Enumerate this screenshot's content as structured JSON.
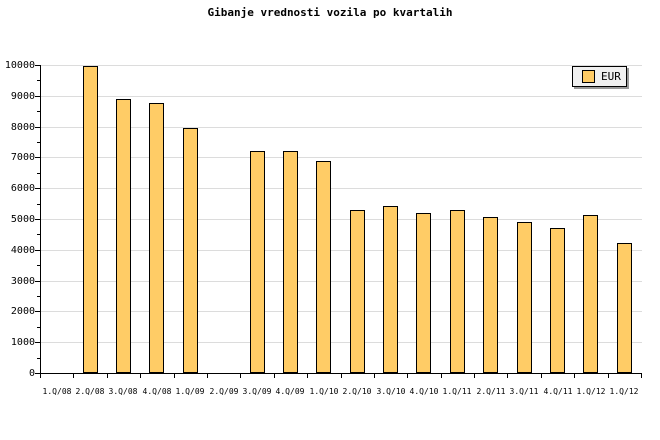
{
  "title": "Gibanje vrednosti vozila po kvartalih",
  "legend": {
    "label": "EUR",
    "swatch_color": "#FFCC66"
  },
  "colors": {
    "background": "#FFFFFF",
    "bar_fill": "#FFCC66",
    "bar_border": "#000000",
    "gridline": "#DCDCDC",
    "axis": "#000000",
    "legend_bg": "#F0F0F0",
    "legend_shadow": "#999999"
  },
  "chart_data": {
    "type": "bar",
    "title": "Gibanje vrednosti vozila po kvartalih",
    "categories": [
      "1.Q/08",
      "2.Q/08",
      "3.Q/08",
      "4.Q/08",
      "1.Q/09",
      "2.Q/09",
      "3.Q/09",
      "4.Q/09",
      "1.Q/10",
      "2.Q/10",
      "3.Q/10",
      "4.Q/10",
      "1.Q/11",
      "2.Q/11",
      "3.Q/11",
      "4.Q/11",
      "1.Q/12",
      "1.Q/12"
    ],
    "series": [
      {
        "name": "EUR",
        "values": [
          null,
          9980,
          8880,
          8760,
          7950,
          null,
          7210,
          7210,
          6880,
          5280,
          5420,
          5200,
          5280,
          5060,
          4890,
          4700,
          5130,
          4230
        ]
      }
    ],
    "ylim": [
      0,
      10000
    ],
    "ytick_interval": 1000,
    "ytick_minor_interval": 500,
    "ytick_labels": [
      "0",
      "1000",
      "2000",
      "3000",
      "4000",
      "5000",
      "6000",
      "7000",
      "8000",
      "9000",
      "10000"
    ],
    "grid": true,
    "legend_position": "top-right",
    "xlabel": "",
    "ylabel": ""
  }
}
